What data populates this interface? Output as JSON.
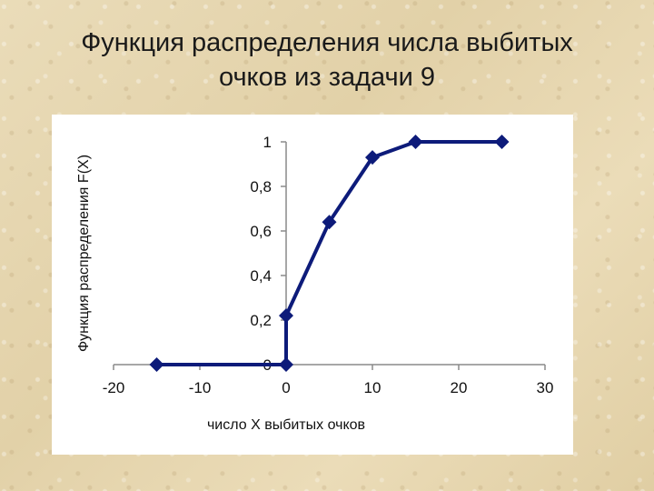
{
  "slide": {
    "title_line1": "Функция распределения числа выбитых",
    "title_line2": "очков из задачи 9"
  },
  "chart_data": {
    "type": "line",
    "title": "",
    "xlabel": "число X выбитых очков",
    "ylabel": "Функция распределения F(X)",
    "xlim": [
      -20,
      30
    ],
    "ylim": [
      0,
      1
    ],
    "x_ticks": [
      -20,
      -10,
      0,
      10,
      20,
      30
    ],
    "x_tick_labels": [
      "-20",
      "-10",
      "0",
      "10",
      "20",
      "30"
    ],
    "y_ticks": [
      0,
      0.2,
      0.4,
      0.6,
      0.8,
      1
    ],
    "y_tick_labels": [
      "0",
      "0,2",
      "0,4",
      "0,6",
      "0,8",
      "1"
    ],
    "grid": false,
    "legend": "none",
    "series": [
      {
        "color": "#0d1b7a",
        "marker": "diamond",
        "points": [
          {
            "x": -15,
            "y": 0
          },
          {
            "x": 0,
            "y": 0
          },
          {
            "x": 0,
            "y": 0.22
          },
          {
            "x": 5,
            "y": 0.64
          },
          {
            "x": 10,
            "y": 0.93
          },
          {
            "x": 15,
            "y": 1
          },
          {
            "x": 25,
            "y": 1
          }
        ]
      }
    ]
  }
}
